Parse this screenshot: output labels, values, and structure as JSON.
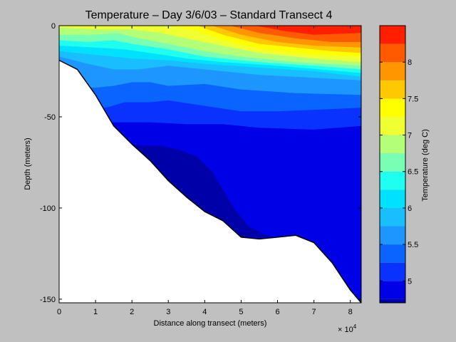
{
  "chart_data": {
    "type": "heatmap",
    "title": "Temperature – Day 3/6/03 – Standard Transect 4",
    "xlabel": "Distance along transect (meters)",
    "ylabel": "Depth (meters)",
    "x_multiplier": "× 10",
    "x_multiplier_exp": "4",
    "xlim": [
      0,
      83000
    ],
    "ylim": [
      -152,
      0
    ],
    "xticks": [
      0,
      10000,
      20000,
      30000,
      40000,
      50000,
      60000,
      70000,
      80000
    ],
    "xtick_labels": [
      "0",
      "1",
      "2",
      "3",
      "4",
      "5",
      "6",
      "7",
      "8"
    ],
    "yticks": [
      0,
      -50,
      -100,
      -150
    ],
    "ytick_labels": [
      "0",
      "-50",
      "-100",
      "-150"
    ],
    "bathymetry": {
      "x": [
        0,
        5000,
        10000,
        15000,
        20000,
        25000,
        30000,
        35000,
        40000,
        45000,
        50000,
        55000,
        60000,
        65000,
        70000,
        75000,
        80000,
        83000
      ],
      "depth": [
        -19,
        -24,
        -38,
        -55,
        -65,
        -74,
        -85,
        -94,
        -102,
        -107,
        -116,
        -117,
        -116,
        -115,
        -119,
        -130,
        -145,
        -152
      ]
    },
    "contour_lines": [
      {
        "level": 8.5,
        "points": [
          [
            62000,
            0
          ],
          [
            83000,
            0
          ]
        ]
      },
      {
        "level": 8.25,
        "points": [
          [
            54000,
            0
          ],
          [
            62000,
            -3
          ],
          [
            70000,
            -5
          ],
          [
            83000,
            -4
          ]
        ]
      },
      {
        "level": 8.0,
        "points": [
          [
            47000,
            0
          ],
          [
            55000,
            -4
          ],
          [
            65000,
            -7
          ],
          [
            75000,
            -9
          ],
          [
            83000,
            -9
          ]
        ]
      },
      {
        "level": 7.75,
        "points": [
          [
            42000,
            0
          ],
          [
            50000,
            -5
          ],
          [
            60000,
            -9
          ],
          [
            70000,
            -11
          ],
          [
            83000,
            -12
          ]
        ]
      },
      {
        "level": 7.5,
        "points": [
          [
            38000,
            0
          ],
          [
            45000,
            -5
          ],
          [
            55000,
            -10
          ],
          [
            65000,
            -12
          ],
          [
            75000,
            -14
          ],
          [
            83000,
            -15
          ]
        ]
      },
      {
        "level": 7.25,
        "points": [
          [
            30000,
            0
          ],
          [
            38000,
            -3
          ],
          [
            45000,
            -8
          ],
          [
            55000,
            -13
          ],
          [
            70000,
            -16
          ],
          [
            83000,
            -17
          ]
        ]
      },
      {
        "level": 7.0,
        "points": [
          [
            0,
            -1
          ],
          [
            10000,
            -2
          ],
          [
            20000,
            -2
          ],
          [
            28000,
            -4
          ],
          [
            35000,
            -7
          ],
          [
            45000,
            -11
          ],
          [
            55000,
            -15
          ],
          [
            70000,
            -18
          ],
          [
            83000,
            -20
          ]
        ]
      },
      {
        "level": 6.75,
        "points": [
          [
            0,
            -5
          ],
          [
            8000,
            -5
          ],
          [
            16000,
            -4
          ],
          [
            22000,
            -7
          ],
          [
            30000,
            -10
          ],
          [
            40000,
            -14
          ],
          [
            50000,
            -17
          ],
          [
            65000,
            -20
          ],
          [
            83000,
            -22
          ]
        ]
      },
      {
        "level": 6.5,
        "points": [
          [
            0,
            -8
          ],
          [
            8000,
            -9
          ],
          [
            15000,
            -8
          ],
          [
            20000,
            -10
          ],
          [
            30000,
            -13
          ],
          [
            40000,
            -17
          ],
          [
            55000,
            -20
          ],
          [
            70000,
            -22
          ],
          [
            83000,
            -24
          ]
        ]
      },
      {
        "level": 6.25,
        "points": [
          [
            0,
            -11
          ],
          [
            10000,
            -12
          ],
          [
            18000,
            -13
          ],
          [
            25000,
            -15
          ],
          [
            35000,
            -18
          ],
          [
            45000,
            -20
          ],
          [
            60000,
            -22
          ],
          [
            83000,
            -26
          ]
        ]
      },
      {
        "level": 6.0,
        "points": [
          [
            0,
            -14
          ],
          [
            10000,
            -16
          ],
          [
            20000,
            -18
          ],
          [
            30000,
            -19
          ],
          [
            40000,
            -21
          ],
          [
            55000,
            -23
          ],
          [
            70000,
            -25
          ],
          [
            83000,
            -28
          ]
        ]
      },
      {
        "level": 5.75,
        "points": [
          [
            0,
            -17
          ],
          [
            8000,
            -21
          ],
          [
            15000,
            -24
          ],
          [
            22000,
            -24
          ],
          [
            30000,
            -22
          ],
          [
            40000,
            -24
          ],
          [
            55000,
            -27
          ],
          [
            83000,
            -30
          ]
        ]
      },
      {
        "level": 5.5,
        "points": [
          [
            10000,
            -34
          ],
          [
            15000,
            -33
          ],
          [
            20000,
            -31
          ],
          [
            25000,
            -31
          ],
          [
            30000,
            -33
          ],
          [
            40000,
            -32
          ],
          [
            50000,
            -35
          ],
          [
            65000,
            -37
          ],
          [
            83000,
            -38
          ]
        ]
      },
      {
        "level": 5.25,
        "points": [
          [
            13000,
            -45
          ],
          [
            18000,
            -42
          ],
          [
            25000,
            -42
          ],
          [
            30000,
            -41
          ],
          [
            40000,
            -44
          ],
          [
            50000,
            -47
          ],
          [
            60000,
            -47
          ],
          [
            72000,
            -46
          ],
          [
            83000,
            -45
          ]
        ]
      },
      {
        "level": 5.0,
        "points": [
          [
            15000,
            -53
          ],
          [
            25000,
            -53
          ],
          [
            35000,
            -54
          ],
          [
            45000,
            -54
          ],
          [
            55000,
            -56
          ],
          [
            70000,
            -57
          ],
          [
            83000,
            -55
          ]
        ]
      }
    ],
    "colorbar": {
      "label": "Temperature (deg C)",
      "min": 4.7,
      "max": 8.5,
      "ticks": [
        5,
        5.5,
        6,
        6.5,
        7,
        7.5,
        8
      ],
      "tick_labels": [
        "5",
        "5.5",
        "6",
        "6.5",
        "7",
        "7.5",
        "8"
      ],
      "levels": [
        4.75,
        5.0,
        5.25,
        5.5,
        5.75,
        6.0,
        6.25,
        6.5,
        6.75,
        7.0,
        7.25,
        7.5,
        7.75,
        8.0,
        8.25,
        8.5
      ],
      "colors": [
        "#0000a8",
        "#0000e6",
        "#0a32ff",
        "#0a64ff",
        "#1e96ff",
        "#19beff",
        "#00e1ff",
        "#1efff0",
        "#78ffb4",
        "#b4ff78",
        "#f0ff32",
        "#ffff00",
        "#ffc800",
        "#ff9600",
        "#ff5a00",
        "#ff1e00",
        "#bf0000"
      ]
    }
  }
}
